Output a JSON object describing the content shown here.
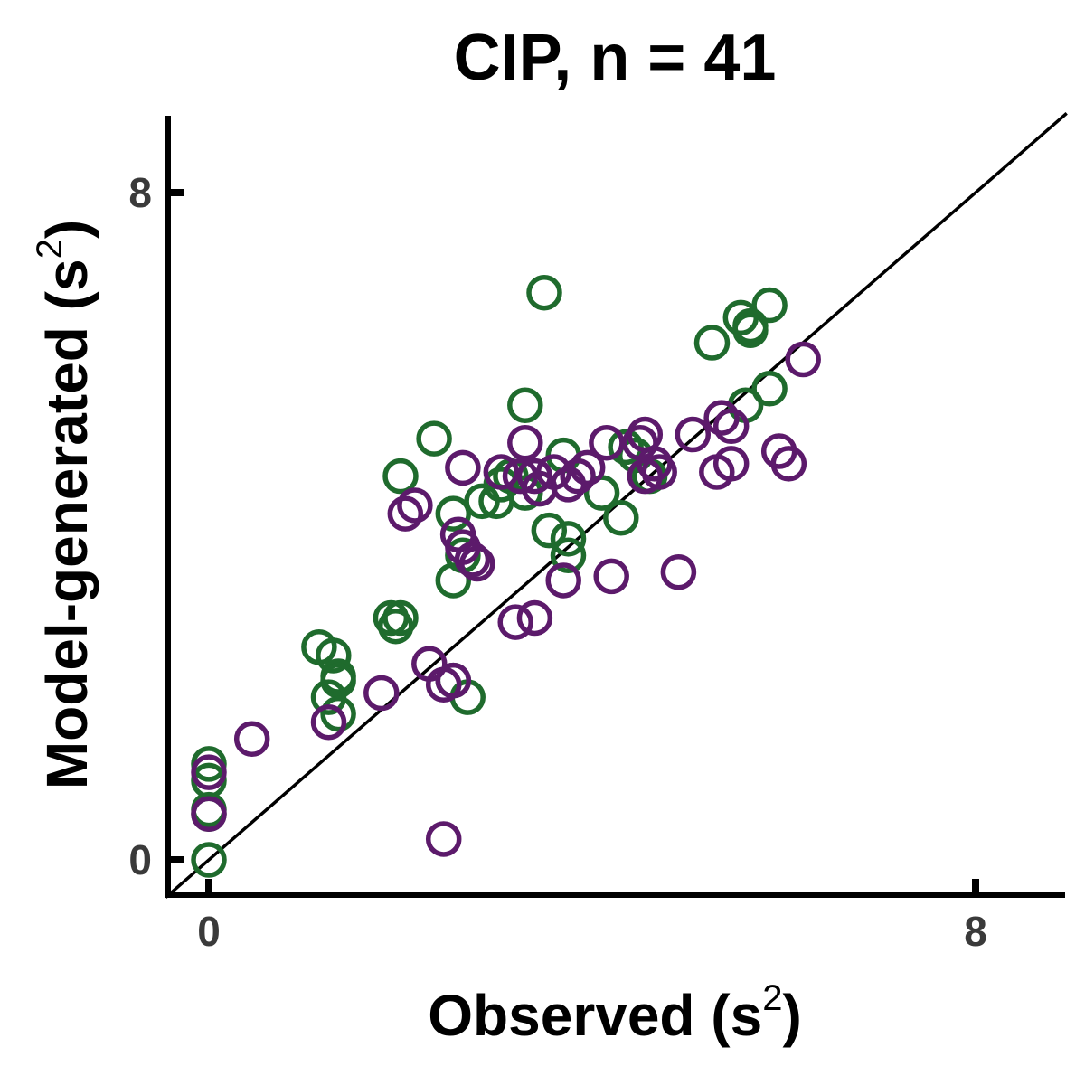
{
  "chart_data": {
    "type": "scatter",
    "title": "CIP, n = 41",
    "xlabel": "Observed",
    "ylabel": "Model-generated",
    "unit_base": "s",
    "unit_exp": "2",
    "xlim": [
      -0.45,
      8.95
    ],
    "ylim": [
      -0.45,
      8.95
    ],
    "xticks": [
      "0",
      "8"
    ],
    "yticks": [
      "0",
      "8"
    ],
    "identity_line": true,
    "grid": false,
    "legend": "none",
    "series": [
      {
        "color": "#1f6b2d",
        "points": [
          [
            0.0,
            1.15
          ],
          [
            0.0,
            0.95
          ],
          [
            0.0,
            0.6
          ],
          [
            0.0,
            0.55
          ],
          [
            0.0,
            0.0
          ],
          [
            1.15,
            2.55
          ],
          [
            1.3,
            2.45
          ],
          [
            1.35,
            2.2
          ],
          [
            1.35,
            2.15
          ],
          [
            1.25,
            1.95
          ],
          [
            1.35,
            1.75
          ],
          [
            1.9,
            2.9
          ],
          [
            1.95,
            2.8
          ],
          [
            2.0,
            2.9
          ],
          [
            2.0,
            4.6
          ],
          [
            2.35,
            5.05
          ],
          [
            2.55,
            2.15
          ],
          [
            2.7,
            1.95
          ],
          [
            2.55,
            3.35
          ],
          [
            2.65,
            3.65
          ],
          [
            2.55,
            4.15
          ],
          [
            2.85,
            4.3
          ],
          [
            3.0,
            4.3
          ],
          [
            3.05,
            4.5
          ],
          [
            3.15,
            4.6
          ],
          [
            3.3,
            4.4
          ],
          [
            3.45,
            4.45
          ],
          [
            3.3,
            5.45
          ],
          [
            3.5,
            6.8
          ],
          [
            3.7,
            4.85
          ],
          [
            3.55,
            3.95
          ],
          [
            3.75,
            3.85
          ],
          [
            3.75,
            3.65
          ],
          [
            4.1,
            4.4
          ],
          [
            4.35,
            4.95
          ],
          [
            4.45,
            4.85
          ],
          [
            4.6,
            4.6
          ],
          [
            4.3,
            4.1
          ],
          [
            5.25,
            6.2
          ],
          [
            5.55,
            6.5
          ],
          [
            5.65,
            6.35
          ],
          [
            5.85,
            6.65
          ],
          [
            5.65,
            6.4
          ],
          [
            5.85,
            5.65
          ],
          [
            5.6,
            5.45
          ]
        ]
      },
      {
        "color": "#5c1a6b",
        "points": [
          [
            0.0,
            1.05
          ],
          [
            0.0,
            0.55
          ],
          [
            0.45,
            1.45
          ],
          [
            1.25,
            1.65
          ],
          [
            1.8,
            2.0
          ],
          [
            2.3,
            2.35
          ],
          [
            2.45,
            2.1
          ],
          [
            2.55,
            2.15
          ],
          [
            2.45,
            0.25
          ],
          [
            2.05,
            4.15
          ],
          [
            2.15,
            4.25
          ],
          [
            2.6,
            3.9
          ],
          [
            2.65,
            3.75
          ],
          [
            2.75,
            3.6
          ],
          [
            2.8,
            3.55
          ],
          [
            2.65,
            4.7
          ],
          [
            3.05,
            4.65
          ],
          [
            3.25,
            4.6
          ],
          [
            3.4,
            4.6
          ],
          [
            3.3,
            5.0
          ],
          [
            3.45,
            4.45
          ],
          [
            3.6,
            4.65
          ],
          [
            3.75,
            4.5
          ],
          [
            3.85,
            4.6
          ],
          [
            3.95,
            4.7
          ],
          [
            4.15,
            5.0
          ],
          [
            4.5,
            5.0
          ],
          [
            4.55,
            5.1
          ],
          [
            4.55,
            4.6
          ],
          [
            4.65,
            4.75
          ],
          [
            4.7,
            4.65
          ],
          [
            5.05,
            5.1
          ],
          [
            5.35,
            5.3
          ],
          [
            5.45,
            5.2
          ],
          [
            5.3,
            4.65
          ],
          [
            5.45,
            4.75
          ],
          [
            5.95,
            4.9
          ],
          [
            6.05,
            4.75
          ],
          [
            6.2,
            6.0
          ],
          [
            3.2,
            2.85
          ],
          [
            3.4,
            2.9
          ],
          [
            3.7,
            3.35
          ],
          [
            4.2,
            3.4
          ],
          [
            4.9,
            3.45
          ]
        ]
      }
    ]
  }
}
